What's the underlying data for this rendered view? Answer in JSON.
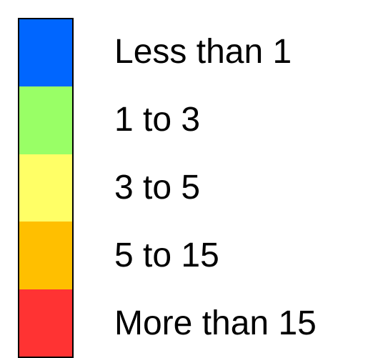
{
  "legend": {
    "items": [
      {
        "label": "Less than 1",
        "color": "#0066ff"
      },
      {
        "label": "1 to 3",
        "color": "#99ff66"
      },
      {
        "label": "3 to 5",
        "color": "#ffff66"
      },
      {
        "label": "5 to 15",
        "color": "#ffbf00"
      },
      {
        "label": "More than 15",
        "color": "#ff3333"
      }
    ]
  }
}
